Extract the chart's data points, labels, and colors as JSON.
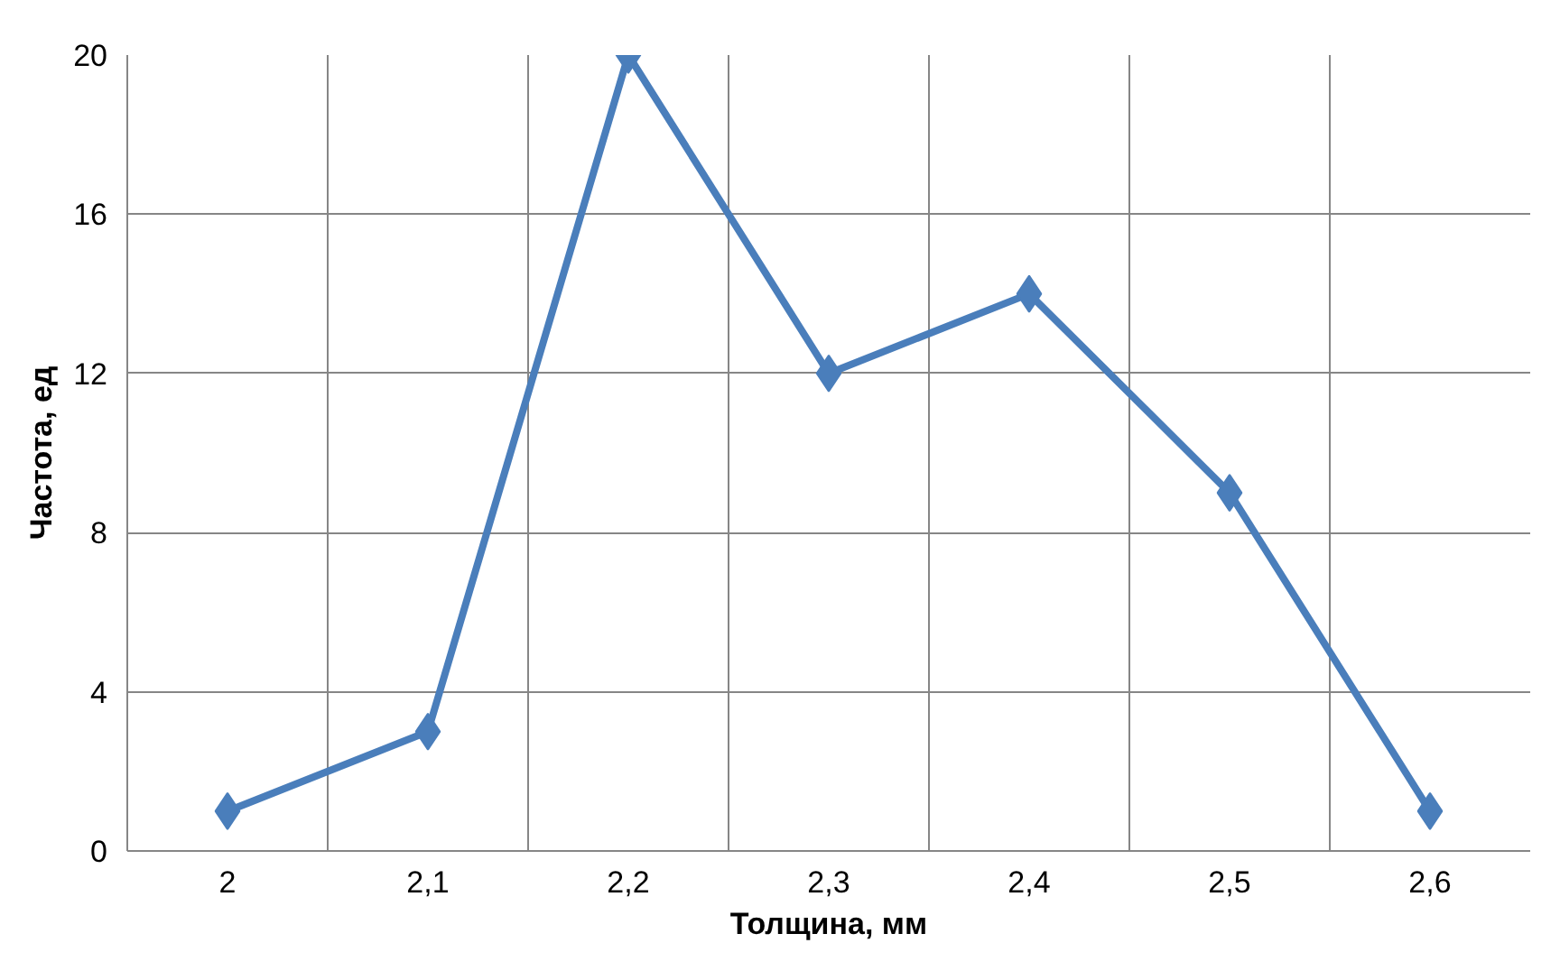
{
  "chart_data": {
    "type": "line",
    "xlabel": "Толщина, мм",
    "ylabel": "Частота, ед",
    "categories": [
      "2",
      "2,1",
      "2,2",
      "2,3",
      "2,4",
      "2,5",
      "2,6"
    ],
    "series": [
      {
        "color": "#4a7ebb",
        "values": [
          1,
          3,
          20,
          12,
          14,
          9,
          1
        ]
      }
    ],
    "ylim": [
      0,
      20
    ],
    "yticks": [
      0,
      4,
      8,
      12,
      16,
      20
    ],
    "grid": true,
    "marker": "diamond",
    "line_style": "solid"
  }
}
